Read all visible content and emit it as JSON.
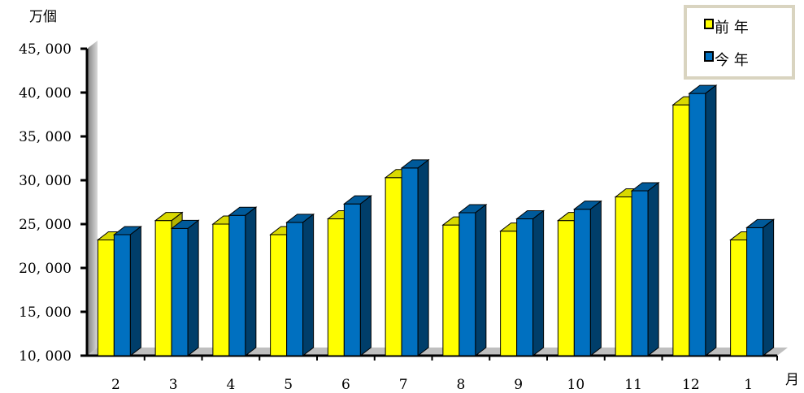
{
  "chart_data": {
    "type": "bar",
    "y_unit": "万個",
    "x_unit": "月",
    "categories": [
      "2",
      "3",
      "4",
      "5",
      "6",
      "7",
      "8",
      "9",
      "10",
      "11",
      "12",
      "1"
    ],
    "series": [
      {
        "name": "前 年",
        "color": "#ffff00",
        "values": [
          23200,
          25400,
          25000,
          23800,
          25600,
          30300,
          24900,
          24200,
          25400,
          28100,
          38600,
          23200
        ]
      },
      {
        "name": "今 年",
        "color": "#0070c0",
        "values": [
          23800,
          24500,
          26000,
          25200,
          27300,
          31400,
          26300,
          25600,
          26700,
          28800,
          39900,
          24600
        ]
      }
    ],
    "ylim": [
      10000,
      45000
    ],
    "ytick_step": 5000,
    "yticks": [
      "10, 000",
      "15, 000",
      "20, 000",
      "25, 000",
      "30, 000",
      "35, 000",
      "40, 000",
      "45, 000"
    ],
    "legend_position": "top-right"
  }
}
